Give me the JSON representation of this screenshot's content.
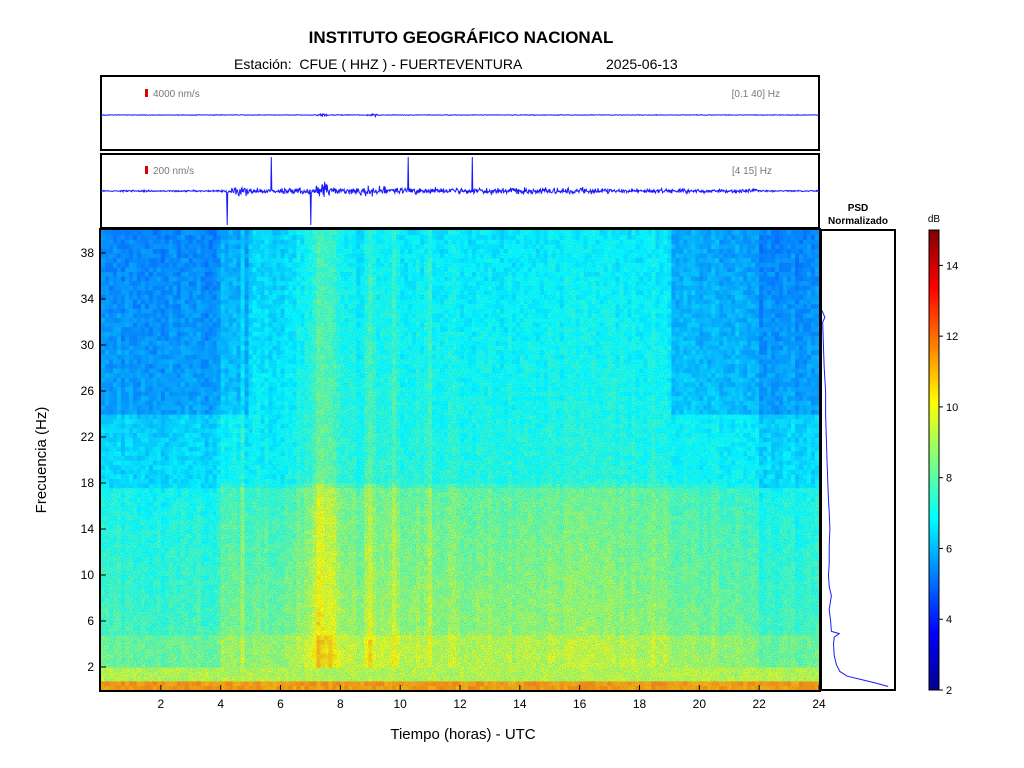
{
  "header": {
    "title": "INSTITUTO GEOGRÁFICO NACIONAL",
    "station": "Estación:  CFUE ( HHZ ) - FUERTEVENTURA",
    "date": "2025-06-13"
  },
  "colors": {
    "trace": "#1a1aff",
    "scale_marker": "#dd0000",
    "frame": "#000000"
  },
  "chart_data": [
    {
      "type": "line",
      "name": "trace-broadband",
      "scale_label": "4000 nm/s",
      "filter_label": "[0.1 40] Hz",
      "xlim": [
        0,
        24
      ]
    },
    {
      "type": "line",
      "name": "trace-filtered",
      "scale_label": "200 nm/s",
      "filter_label": "[4 15] Hz",
      "xlim": [
        0,
        24
      ]
    },
    {
      "type": "heatmap",
      "xlabel": "Tiempo (horas) - UTC",
      "ylabel": "Frecuencia  (Hz)",
      "xlim": [
        0,
        24
      ],
      "ylim": [
        0,
        40
      ],
      "xticks": [
        2,
        4,
        6,
        8,
        10,
        12,
        14,
        16,
        18,
        20,
        22,
        24
      ],
      "yticks": [
        2,
        6,
        10,
        14,
        18,
        22,
        26,
        30,
        34,
        38
      ],
      "colorbar": {
        "label": "dB",
        "range": [
          2,
          15
        ],
        "ticks": [
          2,
          4,
          6,
          8,
          10,
          12,
          14
        ],
        "colormap": "jet"
      }
    },
    {
      "type": "line",
      "title_line1": "PSD",
      "title_line2": "Normalizado",
      "ylim": [
        0,
        40
      ],
      "points": [
        [
          0.92,
          0.3
        ],
        [
          0.75,
          0.6
        ],
        [
          0.55,
          0.9
        ],
        [
          0.35,
          1.2
        ],
        [
          0.25,
          1.6
        ],
        [
          0.2,
          2.2
        ],
        [
          0.17,
          3.0
        ],
        [
          0.16,
          4.0
        ],
        [
          0.17,
          4.6
        ],
        [
          0.24,
          4.9
        ],
        [
          0.13,
          5.1
        ],
        [
          0.12,
          6.0
        ],
        [
          0.1,
          7.0
        ],
        [
          0.13,
          8.2
        ],
        [
          0.1,
          9.0
        ],
        [
          0.09,
          10.0
        ],
        [
          0.1,
          11.0
        ],
        [
          0.1,
          12.5
        ],
        [
          0.11,
          14.0
        ],
        [
          0.1,
          15.5
        ],
        [
          0.09,
          16.5
        ],
        [
          0.08,
          18.0
        ],
        [
          0.07,
          20.0
        ],
        [
          0.06,
          22.0
        ],
        [
          0.05,
          24.0
        ],
        [
          0.05,
          26.0
        ],
        [
          0.03,
          28.0
        ],
        [
          0.02,
          30.0
        ],
        [
          0.01,
          32.0
        ],
        [
          0.04,
          32.4
        ],
        [
          0.0,
          33.0
        ]
      ]
    }
  ]
}
